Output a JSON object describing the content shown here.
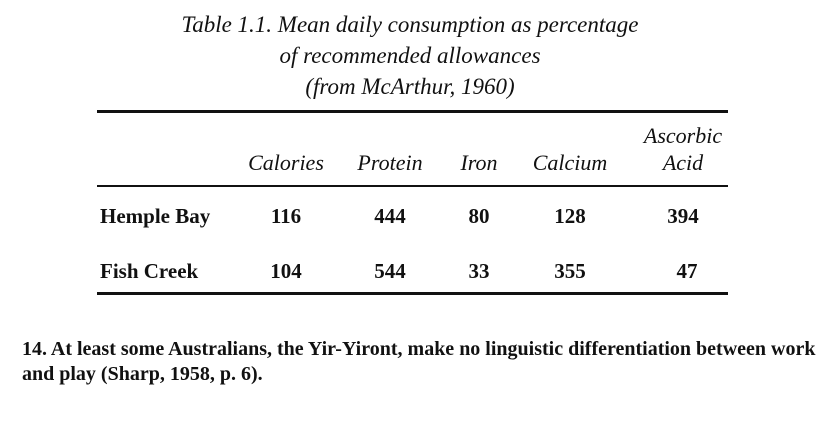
{
  "caption": {
    "line1": "Table 1.1. Mean daily consumption as percentage",
    "line2": "of recommended allowances",
    "line3": "(from McArthur, 1960)"
  },
  "table": {
    "headers": {
      "calories": "Calories",
      "protein": "Protein",
      "iron": "Iron",
      "calcium": "Calcium",
      "ascorbic_line1": "Ascorbic",
      "ascorbic_line2": "Acid"
    },
    "rows": [
      {
        "label": "Hemple Bay",
        "calories": "116",
        "protein": "444",
        "iron": "80",
        "calcium": "128",
        "ascorbic": "394"
      },
      {
        "label": "Fish Creek",
        "calories": "104",
        "protein": "544",
        "iron": "33",
        "calcium": "355",
        "ascorbic": "47"
      }
    ]
  },
  "footnote": {
    "text": "14. At least some Australians, the Yir-Yiront, make no linguistic differentiation between work and play (Sharp, 1958, p. 6)."
  }
}
